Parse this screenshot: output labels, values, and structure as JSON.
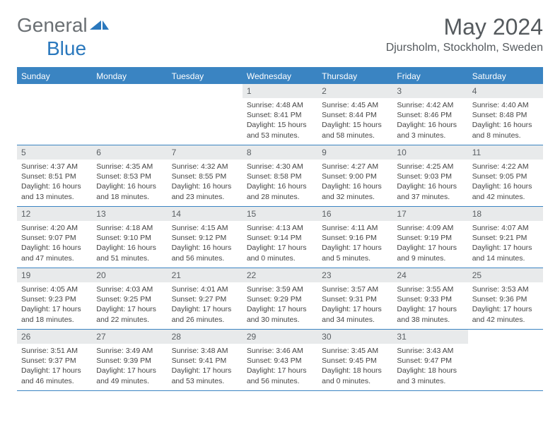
{
  "logo": {
    "text1": "General",
    "text2": "Blue"
  },
  "title": "May 2024",
  "location": "Djursholm, Stockholm, Sweden",
  "colors": {
    "header_bar": "#3a84c2",
    "daynum_bg": "#e8eaeb",
    "text_muted": "#555a5e",
    "logo_gray": "#6a6f73",
    "logo_blue": "#2a78bd"
  },
  "daysOfWeek": [
    "Sunday",
    "Monday",
    "Tuesday",
    "Wednesday",
    "Thursday",
    "Friday",
    "Saturday"
  ],
  "firstDayOffset": 3,
  "days": [
    {
      "n": "1",
      "sunrise": "4:48 AM",
      "sunset": "8:41 PM",
      "daylight": "15 hours and 53 minutes."
    },
    {
      "n": "2",
      "sunrise": "4:45 AM",
      "sunset": "8:44 PM",
      "daylight": "15 hours and 58 minutes."
    },
    {
      "n": "3",
      "sunrise": "4:42 AM",
      "sunset": "8:46 PM",
      "daylight": "16 hours and 3 minutes."
    },
    {
      "n": "4",
      "sunrise": "4:40 AM",
      "sunset": "8:48 PM",
      "daylight": "16 hours and 8 minutes."
    },
    {
      "n": "5",
      "sunrise": "4:37 AM",
      "sunset": "8:51 PM",
      "daylight": "16 hours and 13 minutes."
    },
    {
      "n": "6",
      "sunrise": "4:35 AM",
      "sunset": "8:53 PM",
      "daylight": "16 hours and 18 minutes."
    },
    {
      "n": "7",
      "sunrise": "4:32 AM",
      "sunset": "8:55 PM",
      "daylight": "16 hours and 23 minutes."
    },
    {
      "n": "8",
      "sunrise": "4:30 AM",
      "sunset": "8:58 PM",
      "daylight": "16 hours and 28 minutes."
    },
    {
      "n": "9",
      "sunrise": "4:27 AM",
      "sunset": "9:00 PM",
      "daylight": "16 hours and 32 minutes."
    },
    {
      "n": "10",
      "sunrise": "4:25 AM",
      "sunset": "9:03 PM",
      "daylight": "16 hours and 37 minutes."
    },
    {
      "n": "11",
      "sunrise": "4:22 AM",
      "sunset": "9:05 PM",
      "daylight": "16 hours and 42 minutes."
    },
    {
      "n": "12",
      "sunrise": "4:20 AM",
      "sunset": "9:07 PM",
      "daylight": "16 hours and 47 minutes."
    },
    {
      "n": "13",
      "sunrise": "4:18 AM",
      "sunset": "9:10 PM",
      "daylight": "16 hours and 51 minutes."
    },
    {
      "n": "14",
      "sunrise": "4:15 AM",
      "sunset": "9:12 PM",
      "daylight": "16 hours and 56 minutes."
    },
    {
      "n": "15",
      "sunrise": "4:13 AM",
      "sunset": "9:14 PM",
      "daylight": "17 hours and 0 minutes."
    },
    {
      "n": "16",
      "sunrise": "4:11 AM",
      "sunset": "9:16 PM",
      "daylight": "17 hours and 5 minutes."
    },
    {
      "n": "17",
      "sunrise": "4:09 AM",
      "sunset": "9:19 PM",
      "daylight": "17 hours and 9 minutes."
    },
    {
      "n": "18",
      "sunrise": "4:07 AM",
      "sunset": "9:21 PM",
      "daylight": "17 hours and 14 minutes."
    },
    {
      "n": "19",
      "sunrise": "4:05 AM",
      "sunset": "9:23 PM",
      "daylight": "17 hours and 18 minutes."
    },
    {
      "n": "20",
      "sunrise": "4:03 AM",
      "sunset": "9:25 PM",
      "daylight": "17 hours and 22 minutes."
    },
    {
      "n": "21",
      "sunrise": "4:01 AM",
      "sunset": "9:27 PM",
      "daylight": "17 hours and 26 minutes."
    },
    {
      "n": "22",
      "sunrise": "3:59 AM",
      "sunset": "9:29 PM",
      "daylight": "17 hours and 30 minutes."
    },
    {
      "n": "23",
      "sunrise": "3:57 AM",
      "sunset": "9:31 PM",
      "daylight": "17 hours and 34 minutes."
    },
    {
      "n": "24",
      "sunrise": "3:55 AM",
      "sunset": "9:33 PM",
      "daylight": "17 hours and 38 minutes."
    },
    {
      "n": "25",
      "sunrise": "3:53 AM",
      "sunset": "9:36 PM",
      "daylight": "17 hours and 42 minutes."
    },
    {
      "n": "26",
      "sunrise": "3:51 AM",
      "sunset": "9:37 PM",
      "daylight": "17 hours and 46 minutes."
    },
    {
      "n": "27",
      "sunrise": "3:49 AM",
      "sunset": "9:39 PM",
      "daylight": "17 hours and 49 minutes."
    },
    {
      "n": "28",
      "sunrise": "3:48 AM",
      "sunset": "9:41 PM",
      "daylight": "17 hours and 53 minutes."
    },
    {
      "n": "29",
      "sunrise": "3:46 AM",
      "sunset": "9:43 PM",
      "daylight": "17 hours and 56 minutes."
    },
    {
      "n": "30",
      "sunrise": "3:45 AM",
      "sunset": "9:45 PM",
      "daylight": "18 hours and 0 minutes."
    },
    {
      "n": "31",
      "sunrise": "3:43 AM",
      "sunset": "9:47 PM",
      "daylight": "18 hours and 3 minutes."
    }
  ],
  "labels": {
    "sunrise": "Sunrise: ",
    "sunset": "Sunset: ",
    "daylight": "Daylight: "
  }
}
